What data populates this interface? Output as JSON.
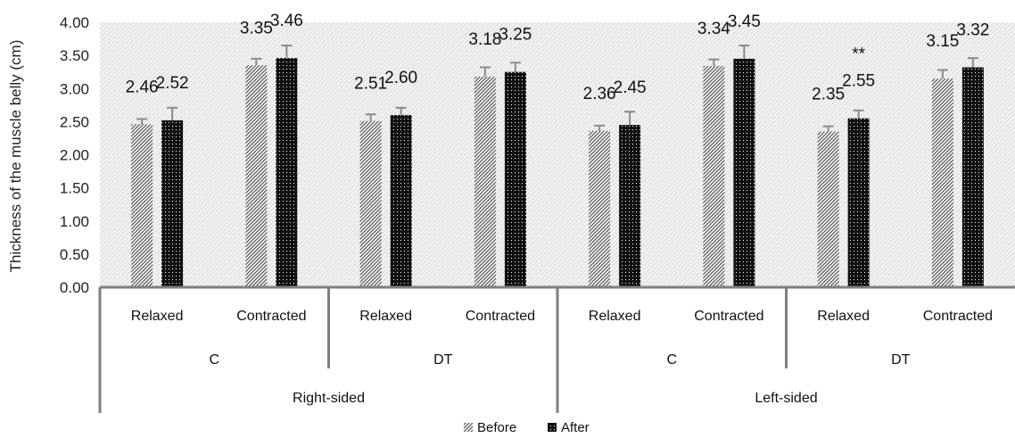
{
  "chart_data": {
    "type": "bar",
    "ylabel": "Thickness of the muscle belly (cm)",
    "ylim": [
      0,
      4
    ],
    "yticks": [
      "0.00",
      "0.50",
      "1.00",
      "1.50",
      "2.00",
      "2.50",
      "3.00",
      "3.50",
      "4.00"
    ],
    "categories": [
      [
        "Right-sided",
        "C",
        "Relaxed"
      ],
      [
        "Right-sided",
        "C",
        "Contracted"
      ],
      [
        "Right-sided",
        "DT",
        "Relaxed"
      ],
      [
        "Right-sided",
        "DT",
        "Contracted"
      ],
      [
        "Left-sided",
        "C",
        "Relaxed"
      ],
      [
        "Left-sided",
        "C",
        "Contracted"
      ],
      [
        "Left-sided",
        "DT",
        "Relaxed"
      ],
      [
        "Left-sided",
        "DT",
        "Contracted"
      ]
    ],
    "level1_labels": [
      "Relaxed",
      "Contracted",
      "Relaxed",
      "Contracted",
      "Relaxed",
      "Contracted",
      "Relaxed",
      "Contracted"
    ],
    "level2_labels": [
      "C",
      "DT",
      "C",
      "DT"
    ],
    "level3_labels": [
      "Right-sided",
      "Left-sided"
    ],
    "series": [
      {
        "name": "Before",
        "values": [
          2.46,
          3.35,
          2.51,
          3.18,
          2.36,
          3.34,
          2.35,
          3.15
        ],
        "labels": [
          "2.46",
          "3.35",
          "2.51",
          "3.18",
          "2.36",
          "3.34",
          "2.35",
          "3.15"
        ],
        "errors": [
          0.08,
          0.1,
          0.1,
          0.14,
          0.08,
          0.1,
          0.08,
          0.13
        ]
      },
      {
        "name": "After",
        "values": [
          2.52,
          3.46,
          2.6,
          3.25,
          2.45,
          3.45,
          2.55,
          3.32
        ],
        "labels": [
          "2.52",
          "3.46",
          "2.60",
          "3.25",
          "2.45",
          "3.45",
          "2.55",
          "3.32"
        ],
        "errors": [
          0.19,
          0.19,
          0.11,
          0.14,
          0.2,
          0.2,
          0.12,
          0.14
        ]
      }
    ],
    "annotations": [
      {
        "text": "**",
        "series": 1,
        "index": 6
      }
    ],
    "legend_position": "bottom",
    "grid": false
  }
}
